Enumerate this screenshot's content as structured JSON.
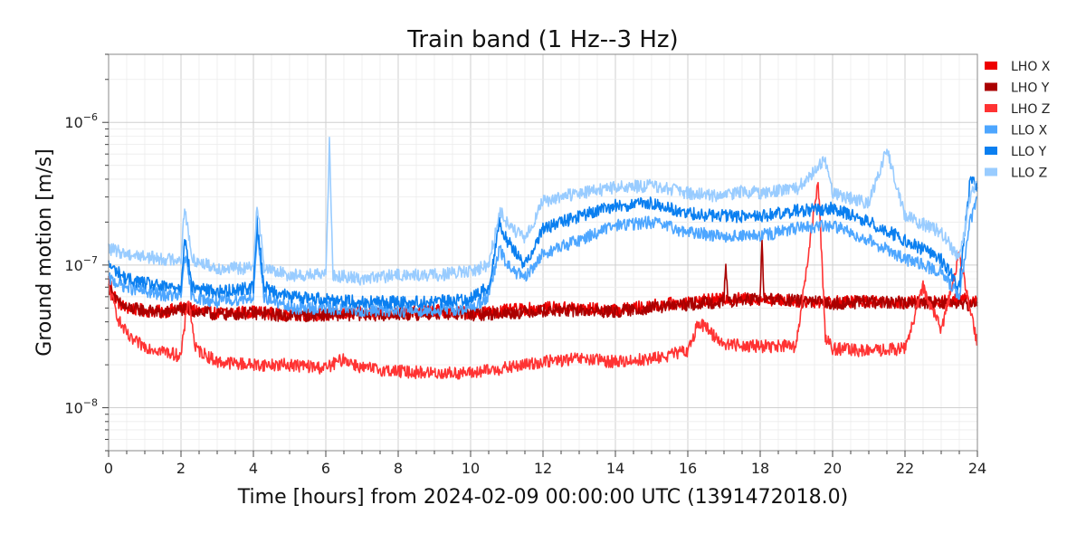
{
  "chart_data": {
    "type": "line",
    "title": "Train band (1 Hz--3 Hz)",
    "xlabel": "Time [hours] from 2024-02-09 00:00:00 UTC (1391472018.0)",
    "ylabel": "Ground motion [m/s]",
    "xlim": [
      0,
      24
    ],
    "ylim": [
      5e-09,
      3e-06
    ],
    "yscale": "log",
    "grid": true,
    "legend_position": "outside-top-right",
    "x_ticks": [
      0,
      2,
      4,
      6,
      8,
      10,
      12,
      14,
      16,
      18,
      20,
      22,
      24
    ],
    "x_tick_labels": [
      "0",
      "2",
      "4",
      "6",
      "8",
      "10",
      "12",
      "14",
      "16",
      "18",
      "20",
      "22",
      "24"
    ],
    "y_ticks": [
      {
        "value": 1e-08,
        "base": "10",
        "exp": "−8"
      },
      {
        "value": 1e-07,
        "base": "10",
        "exp": "−7"
      },
      {
        "value": 1e-06,
        "base": "10",
        "exp": "−6"
      }
    ],
    "series": [
      {
        "name": "LHO X",
        "color": "#ee0000",
        "x": [
          0,
          0.25,
          0.5,
          1,
          1.5,
          2,
          3,
          4,
          5,
          6,
          7,
          8,
          9,
          10,
          11,
          12,
          13,
          14,
          15,
          16,
          17,
          18,
          19,
          20,
          21,
          22,
          23,
          23.5,
          24
        ],
        "y": [
          8e-08,
          5.5e-08,
          5e-08,
          4.8e-08,
          4.7e-08,
          5e-08,
          4.6e-08,
          4.7e-08,
          4.5e-08,
          4.5e-08,
          4.6e-08,
          4.6e-08,
          4.8e-08,
          4.6e-08,
          4.8e-08,
          5e-08,
          5e-08,
          4.8e-08,
          5.2e-08,
          5.5e-08,
          5.8e-08,
          5.8e-08,
          5.6e-08,
          5.5e-08,
          5.6e-08,
          5.5e-08,
          5.5e-08,
          5.8e-08,
          5.5e-08
        ]
      },
      {
        "name": "LHO Y",
        "color": "#aa0000",
        "x": [
          0,
          0.25,
          0.5,
          1,
          1.5,
          2,
          3,
          4,
          5,
          6,
          7,
          8,
          9,
          10,
          11,
          12,
          13,
          14,
          15,
          16,
          17,
          17.05,
          17.1,
          18,
          18.05,
          18.1,
          19,
          20,
          21,
          22,
          23,
          24
        ],
        "y": [
          7e-08,
          5.5e-08,
          5e-08,
          4.8e-08,
          4.6e-08,
          4.9e-08,
          4.5e-08,
          4.6e-08,
          4.4e-08,
          4.5e-08,
          4.5e-08,
          4.5e-08,
          4.6e-08,
          4.5e-08,
          4.6e-08,
          4.8e-08,
          4.8e-08,
          4.7e-08,
          5e-08,
          5.3e-08,
          5.6e-08,
          1.1e-07,
          5.6e-08,
          5.8e-08,
          1.5e-07,
          5.8e-08,
          5.6e-08,
          5.4e-08,
          5.5e-08,
          5.4e-08,
          5.5e-08,
          5.2e-08
        ]
      },
      {
        "name": "LHO Z",
        "color": "#ff3333",
        "x": [
          0,
          0.3,
          0.6,
          1,
          1.5,
          2,
          2.2,
          2.4,
          3,
          4,
          5,
          6,
          6.5,
          7,
          8,
          9,
          10,
          11,
          12,
          13,
          14,
          15,
          16,
          16.3,
          17,
          18,
          19,
          19.6,
          19.8,
          20,
          21,
          22,
          22.5,
          23,
          23.5,
          24
        ],
        "y": [
          7e-08,
          4e-08,
          3e-08,
          2.7e-08,
          2.5e-08,
          2.3e-08,
          6e-08,
          2.6e-08,
          2.1e-08,
          2e-08,
          2e-08,
          1.9e-08,
          2.2e-08,
          1.9e-08,
          1.8e-08,
          1.75e-08,
          1.75e-08,
          1.9e-08,
          2.1e-08,
          2.2e-08,
          2.1e-08,
          2.2e-08,
          2.5e-08,
          4e-08,
          2.8e-08,
          2.7e-08,
          2.7e-08,
          4e-07,
          3.2e-08,
          2.6e-08,
          2.5e-08,
          2.6e-08,
          7e-08,
          3.5e-08,
          1.2e-07,
          2.8e-08
        ]
      },
      {
        "name": "LLO X",
        "color": "#4da6ff",
        "x": [
          0,
          0.5,
          1,
          1.5,
          2,
          2.1,
          2.3,
          3,
          4,
          4.1,
          4.3,
          5,
          6,
          7,
          8,
          9,
          10,
          10.5,
          10.8,
          11,
          11.5,
          12,
          13,
          14,
          15,
          16,
          17,
          18,
          19,
          20,
          21,
          22,
          23,
          23.5,
          23.8,
          24
        ],
        "y": [
          8e-08,
          7e-08,
          6.5e-08,
          6.2e-08,
          6e-08,
          1.2e-07,
          6e-08,
          5.5e-08,
          6e-08,
          1.6e-07,
          6e-08,
          5e-08,
          5e-08,
          4.8e-08,
          4.8e-08,
          4.8e-08,
          5e-08,
          6e-08,
          1.3e-07,
          1e-07,
          8e-08,
          1.2e-07,
          1.5e-07,
          1.9e-07,
          2e-07,
          1.7e-07,
          1.6e-07,
          1.6e-07,
          1.8e-07,
          1.9e-07,
          1.5e-07,
          1.1e-07,
          9e-08,
          6e-08,
          2e-07,
          3e-07
        ]
      },
      {
        "name": "LLO Y",
        "color": "#0a7ff0",
        "x": [
          0,
          0.5,
          1,
          1.5,
          2,
          2.1,
          2.3,
          3,
          4,
          4.1,
          4.3,
          5,
          6,
          7,
          8,
          9,
          10,
          10.5,
          10.8,
          11,
          11.5,
          12,
          13,
          14,
          15,
          16,
          17,
          18,
          19,
          20,
          21,
          22,
          23,
          23.5,
          23.8,
          24
        ],
        "y": [
          1e-07,
          8e-08,
          7.5e-08,
          7e-08,
          7e-08,
          1.6e-07,
          7e-08,
          6.5e-08,
          7e-08,
          2e-07,
          7e-08,
          6e-08,
          5.8e-08,
          5.5e-08,
          5.5e-08,
          5.5e-08,
          5.8e-08,
          7e-08,
          2e-07,
          1.5e-07,
          1e-07,
          1.8e-07,
          2.2e-07,
          2.6e-07,
          2.7e-07,
          2.3e-07,
          2.2e-07,
          2.2e-07,
          2.4e-07,
          2.5e-07,
          2e-07,
          1.5e-07,
          1.1e-07,
          7e-08,
          4e-07,
          3.5e-07
        ]
      },
      {
        "name": "LLO Z",
        "color": "#99ccff",
        "x": [
          0,
          0.5,
          1,
          1.5,
          2,
          2.1,
          2.3,
          3,
          4,
          4.1,
          4.3,
          5,
          6,
          6.1,
          6.2,
          7,
          8,
          9,
          10,
          10.5,
          10.8,
          11,
          11.5,
          12,
          13,
          14,
          15,
          16,
          17,
          17.5,
          18,
          19,
          19.8,
          20,
          21,
          21.5,
          22,
          23,
          23.5,
          23.8,
          24
        ],
        "y": [
          1.3e-07,
          1.2e-07,
          1.15e-07,
          1.1e-07,
          1.1e-07,
          2.6e-07,
          1.1e-07,
          9.5e-08,
          9.5e-08,
          2.8e-07,
          9.5e-08,
          8.5e-08,
          8.5e-08,
          7.5e-07,
          8.5e-08,
          8e-08,
          8.5e-08,
          8.5e-08,
          9e-08,
          1e-07,
          2.4e-07,
          2e-07,
          1.5e-07,
          2.8e-07,
          3.2e-07,
          3.5e-07,
          3.6e-07,
          3.2e-07,
          3e-07,
          3.3e-07,
          3.2e-07,
          3.4e-07,
          5.5e-07,
          3.2e-07,
          2.7e-07,
          6.5e-07,
          2.2e-07,
          1.7e-07,
          1.1e-07,
          3e-07,
          3.8e-07
        ]
      }
    ]
  }
}
